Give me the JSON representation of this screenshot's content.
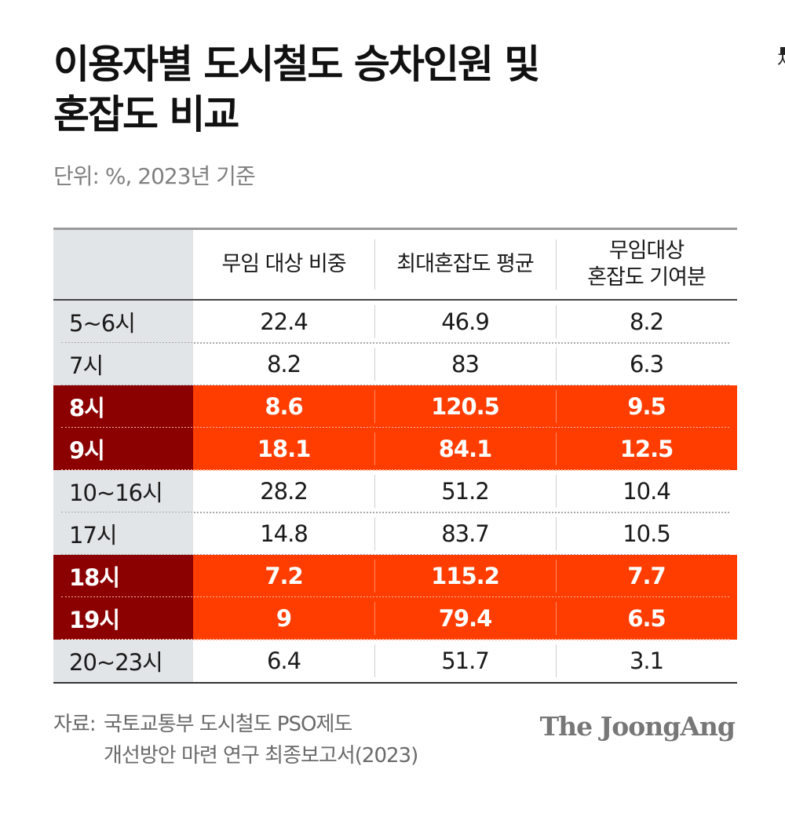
{
  "title_line1": "이용자별 도시철도 승차인원 및",
  "title_line2": "혼잡도 비교",
  "subtitle": "단위: %, 2023년 기준",
  "edge_text": "저",
  "chart_data": {
    "type": "table",
    "title": "이용자별 도시철도 승차인원 및 혼잡도 비교",
    "unit": "단위: %, 2023년 기준",
    "columns": [
      "",
      "무임 대상 비중",
      "최대혼잡도 평균",
      "무임대상 혼잡도 기여분"
    ],
    "column_lines": {
      "c1": [
        "무임 대상 비중"
      ],
      "c2": [
        "최대혼잡도 평균"
      ],
      "c3": [
        "무임대상",
        "혼잡도 기여분"
      ]
    },
    "rows": [
      {
        "label": "5~6시",
        "values": [
          "22.4",
          "46.9",
          "8.2"
        ],
        "highlight": false
      },
      {
        "label": "7시",
        "values": [
          "8.2",
          "83",
          "6.3"
        ],
        "highlight": false
      },
      {
        "label": "8시",
        "values": [
          "8.6",
          "120.5",
          "9.5"
        ],
        "highlight": true
      },
      {
        "label": "9시",
        "values": [
          "18.1",
          "84.1",
          "12.5"
        ],
        "highlight": true
      },
      {
        "label": "10~16시",
        "values": [
          "28.2",
          "51.2",
          "10.4"
        ],
        "highlight": false
      },
      {
        "label": "17시",
        "values": [
          "14.8",
          "83.7",
          "10.5"
        ],
        "highlight": false
      },
      {
        "label": "18시",
        "values": [
          "7.2",
          "115.2",
          "7.7"
        ],
        "highlight": true
      },
      {
        "label": "19시",
        "values": [
          "9",
          "79.4",
          "6.5"
        ],
        "highlight": true
      },
      {
        "label": "20~23시",
        "values": [
          "6.4",
          "51.7",
          "3.1"
        ],
        "highlight": false
      }
    ]
  },
  "source": {
    "label": "자료:",
    "line1": "국토교통부 도시철도 PSO제도",
    "line2": "개선방안 마련 연구 최종보고서(2023)"
  },
  "logo": "The JoongAng",
  "colors": {
    "highlight_row": "#ff3d00",
    "highlight_label": "#8b0000",
    "label_column": "#e2e5e8"
  }
}
